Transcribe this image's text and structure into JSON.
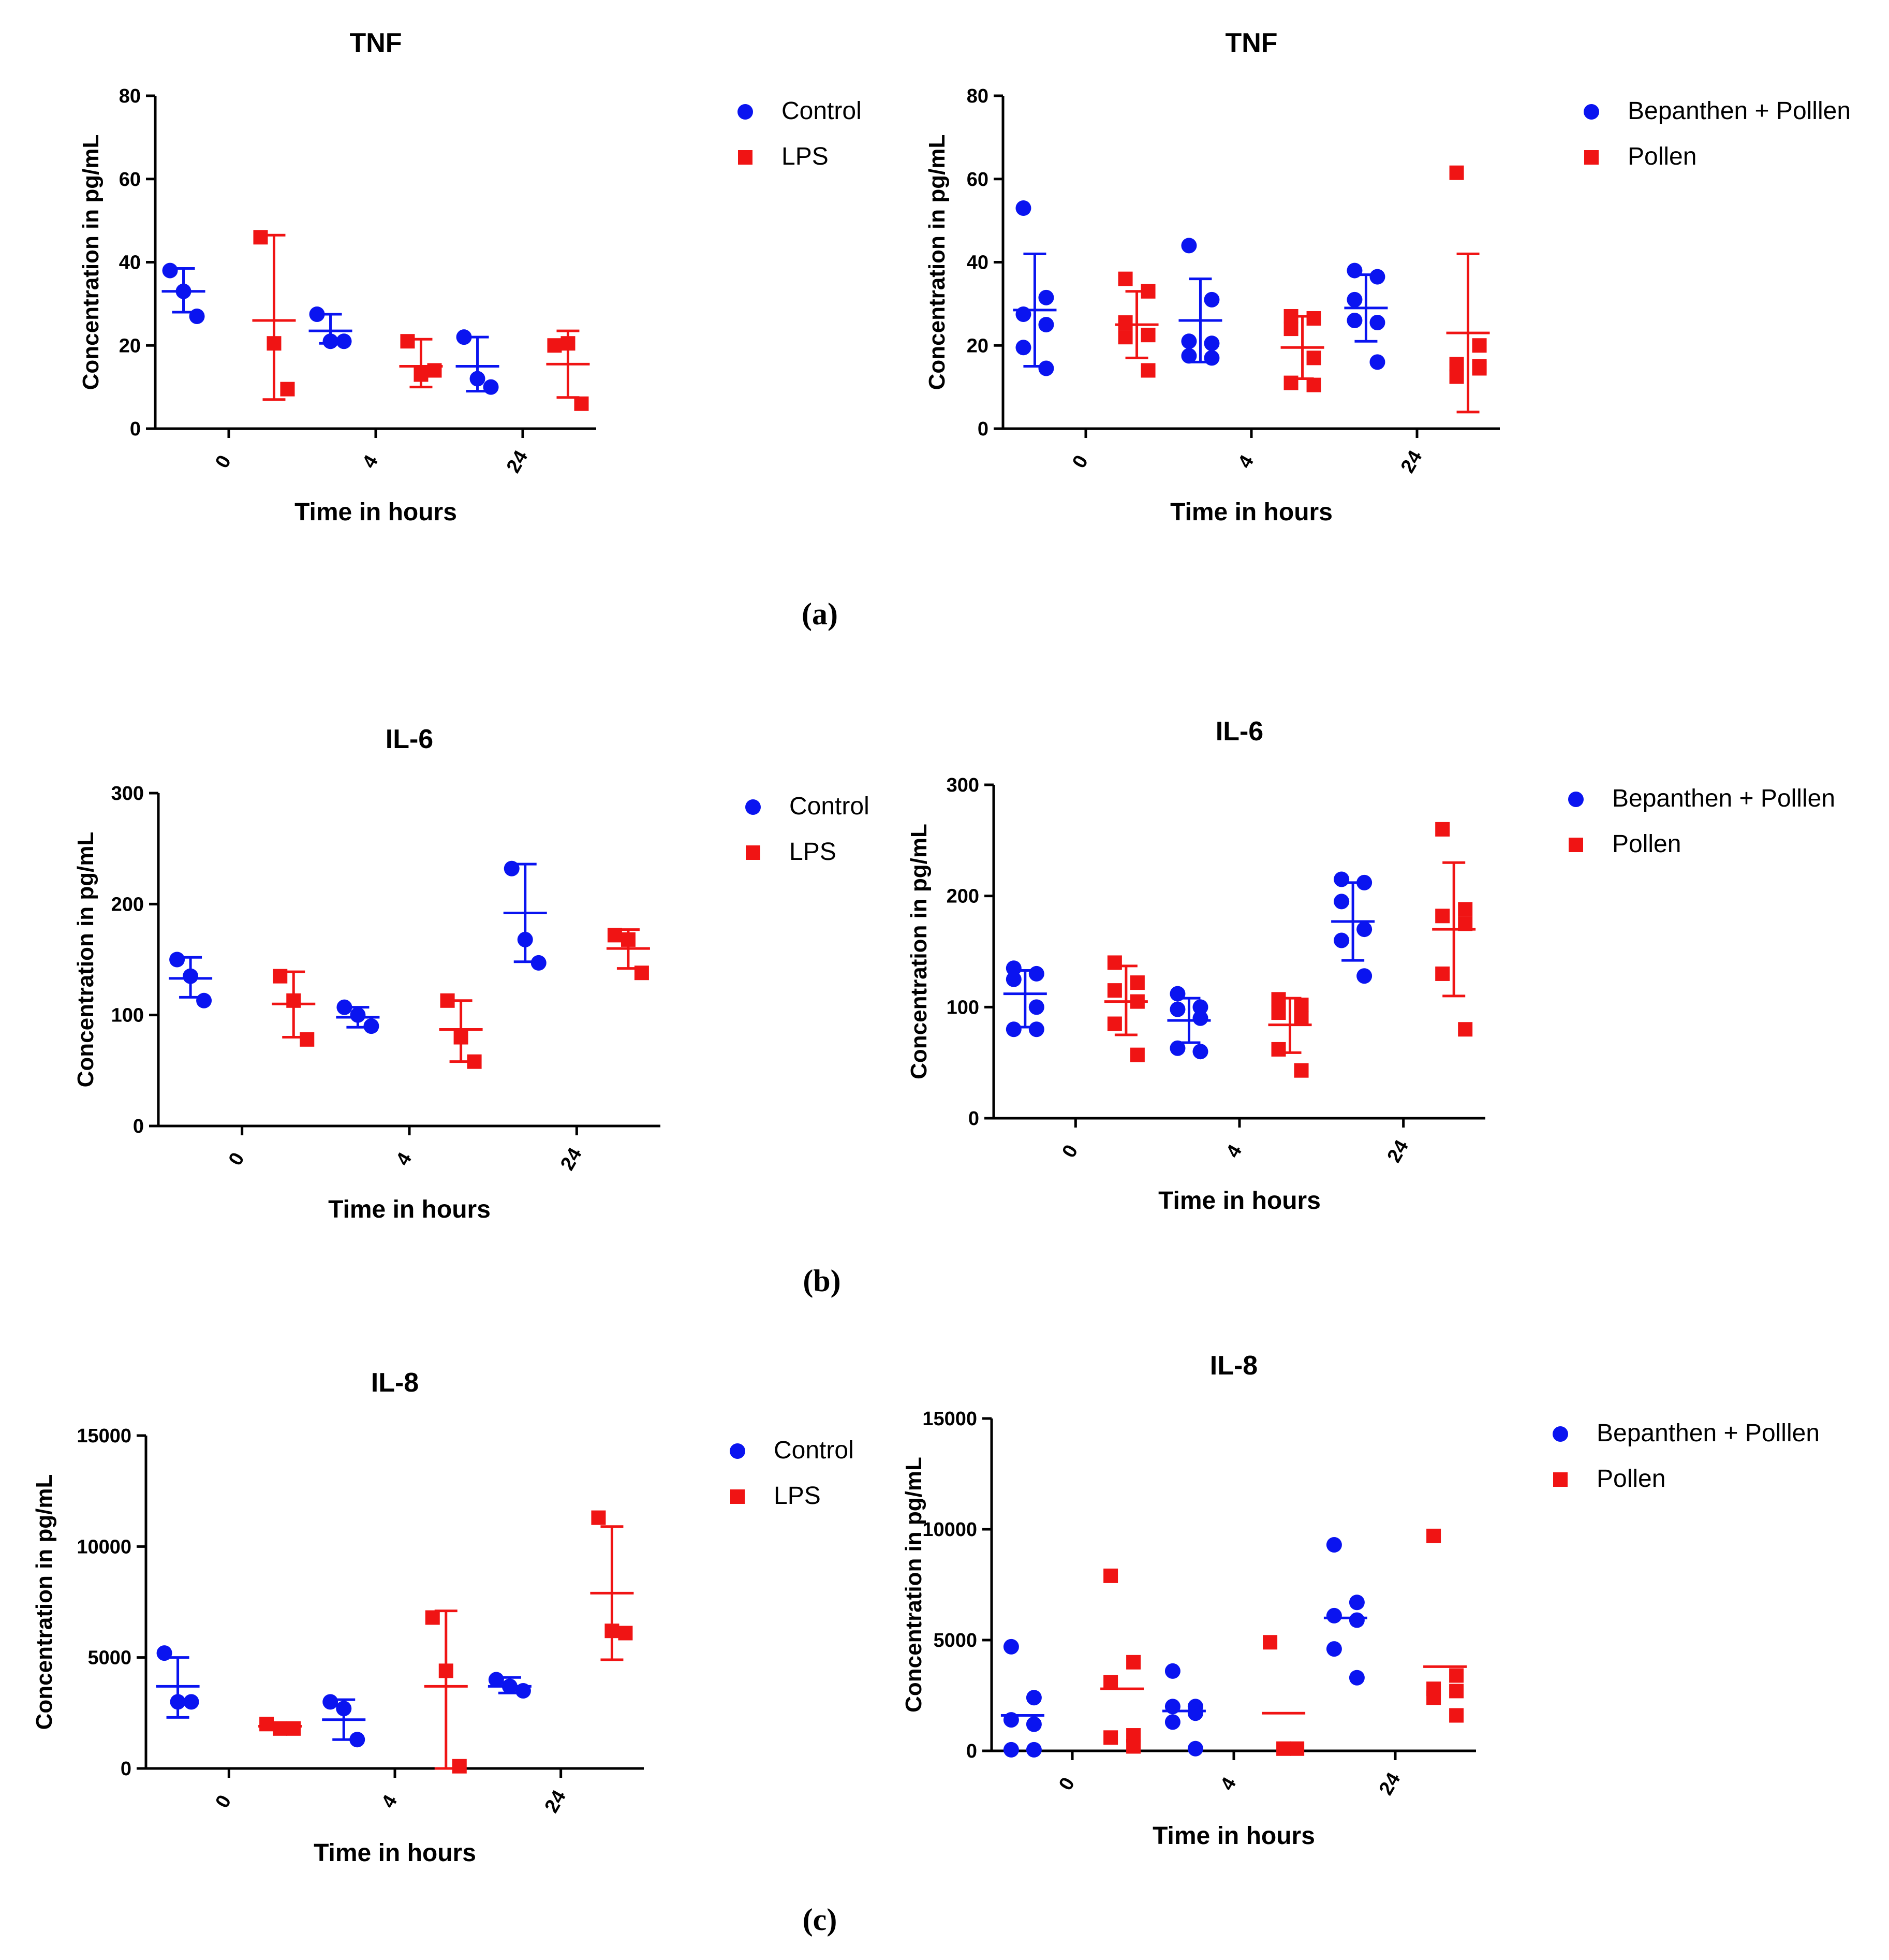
{
  "panel_labels": [
    "(a)",
    "(b)",
    "(c)"
  ],
  "colors": {
    "blue": "#0a14f0",
    "red": "#f01414",
    "axis": "#000000"
  },
  "chart_data": [
    {
      "id": "a-left",
      "type": "scatter",
      "title": "TNF",
      "xlabel": "Time in hours",
      "ylabel": "Concentration in pg/mL",
      "categories": [
        "0",
        "4",
        "24"
      ],
      "ylim": [
        0,
        80
      ],
      "yticks": [
        0,
        20,
        40,
        60,
        80
      ],
      "series": [
        {
          "name": "Control",
          "color": "#0a14f0",
          "marker": "circle",
          "points": [
            [
              38,
              33,
              27
            ],
            [
              27.5,
              21,
              21
            ],
            [
              22,
              12,
              10
            ]
          ],
          "mean": [
            33,
            23.5,
            15
          ],
          "err": [
            [
              28,
              38.5
            ],
            [
              20.5,
              27.5
            ],
            [
              9,
              22
            ]
          ]
        },
        {
          "name": "LPS",
          "color": "#f01414",
          "marker": "square",
          "points": [
            [
              46,
              20.5,
              9.5
            ],
            [
              21,
              13,
              14
            ],
            [
              20,
              20.5,
              6
            ]
          ],
          "mean": [
            26,
            15,
            15.5
          ],
          "err": [
            [
              7,
              46.5
            ],
            [
              10,
              21.5
            ],
            [
              7.5,
              23.5
            ]
          ]
        }
      ]
    },
    {
      "id": "a-right",
      "type": "scatter",
      "title": "TNF",
      "xlabel": "Time in hours",
      "ylabel": "Concentration in pg/mL",
      "categories": [
        "0",
        "4",
        "24"
      ],
      "ylim": [
        0,
        80
      ],
      "yticks": [
        0,
        20,
        40,
        60,
        80
      ],
      "series": [
        {
          "name": "Bepanthen + Polllen",
          "color": "#0a14f0",
          "marker": "circle",
          "points": [
            [
              53,
              31.5,
              27.5,
              25,
              19.5,
              14.5
            ],
            [
              44,
              31,
              21,
              20.5,
              17.5,
              17
            ],
            [
              38,
              36.5,
              31,
              25.5,
              26,
              16
            ]
          ],
          "mean": [
            28.5,
            26,
            29
          ],
          "err": [
            [
              15,
              42
            ],
            [
              16,
              36
            ],
            [
              21,
              37
            ]
          ]
        },
        {
          "name": "Pollen",
          "color": "#f01414",
          "marker": "square",
          "points": [
            [
              36,
              33,
              25.5,
              22.5,
              22,
              14
            ],
            [
              27,
              26.5,
              24,
              17,
              11,
              10.5
            ],
            [
              61.5,
              20,
              15.5,
              14.5,
              12.5,
              15
            ]
          ],
          "mean": [
            25,
            19.5,
            23
          ],
          "err": [
            [
              17,
              33
            ],
            [
              12,
              27
            ],
            [
              4,
              42
            ]
          ]
        }
      ]
    },
    {
      "id": "b-left",
      "type": "scatter",
      "title": "IL-6",
      "xlabel": "Time in hours",
      "ylabel": "Concentration in pg/mL",
      "categories": [
        "0",
        "4",
        "24"
      ],
      "ylim": [
        0,
        300
      ],
      "yticks": [
        0,
        100,
        200,
        300
      ],
      "series": [
        {
          "name": "Control",
          "color": "#0a14f0",
          "marker": "circle",
          "points": [
            [
              150,
              135,
              113
            ],
            [
              107,
              100,
              90
            ],
            [
              232,
              168,
              147
            ]
          ],
          "mean": [
            133,
            98,
            192
          ],
          "err": [
            [
              116,
              152
            ],
            [
              89,
              107
            ],
            [
              148,
              236
            ]
          ]
        },
        {
          "name": "LPS",
          "color": "#f01414",
          "marker": "square",
          "points": [
            [
              135,
              113,
              78
            ],
            [
              113,
              80,
              58
            ],
            [
              172,
              168,
              138
            ]
          ],
          "mean": [
            110,
            87,
            160
          ],
          "err": [
            [
              80,
              139
            ],
            [
              58,
              113
            ],
            [
              142,
              177
            ]
          ]
        }
      ]
    },
    {
      "id": "b-right",
      "type": "scatter",
      "title": "IL-6",
      "xlabel": "Time in hours",
      "ylabel": "Concentration in pg/mL",
      "categories": [
        "0",
        "4",
        "24"
      ],
      "ylim": [
        0,
        300
      ],
      "yticks": [
        0,
        100,
        200,
        300
      ],
      "series": [
        {
          "name": "Bepanthen + Polllen",
          "color": "#0a14f0",
          "marker": "circle",
          "points": [
            [
              135,
              130,
              125,
              100,
              80,
              80
            ],
            [
              112,
              100,
              98,
              90,
              63,
              60
            ],
            [
              215,
              212,
              195,
              170,
              160,
              128
            ]
          ],
          "mean": [
            112,
            88,
            177
          ],
          "err": [
            [
              82,
              133
            ],
            [
              68,
              108
            ],
            [
              142,
              212
            ]
          ]
        },
        {
          "name": "Pollen",
          "color": "#f01414",
          "marker": "square",
          "points": [
            [
              140,
              122,
              115,
              105,
              85,
              57
            ],
            [
              107,
              102,
              95,
              90,
              62,
              43
            ],
            [
              260,
              188,
              182,
              175,
              130,
              80
            ]
          ],
          "mean": [
            105,
            84,
            170
          ],
          "err": [
            [
              75,
              137
            ],
            [
              59,
              108
            ],
            [
              110,
              230
            ]
          ]
        }
      ]
    },
    {
      "id": "c-left",
      "type": "scatter",
      "title": "IL-8",
      "xlabel": "Time in hours",
      "ylabel": "Concentration in pg/mL",
      "categories": [
        "0",
        "4",
        "24"
      ],
      "ylim": [
        0,
        15000
      ],
      "yticks": [
        0,
        5000,
        10000,
        15000
      ],
      "series": [
        {
          "name": "Control",
          "color": "#0a14f0",
          "marker": "circle",
          "points": [
            [
              5200,
              3000,
              3000
            ],
            [
              3000,
              2700,
              1300
            ],
            [
              4000,
              3700,
              3500
            ]
          ],
          "mean": [
            3700,
            2200,
            3700
          ],
          "err": [
            [
              2300,
              5000
            ],
            [
              1300,
              3100
            ],
            [
              3400,
              4100
            ]
          ]
        },
        {
          "name": "LPS",
          "color": "#f01414",
          "marker": "square",
          "points": [
            [
              2000,
              1800,
              1800
            ],
            [
              6800,
              4400,
              100
            ],
            [
              11300,
              6200,
              6100
            ]
          ],
          "mean": [
            1900,
            3700,
            7900
          ],
          "err": [
            [
              1800,
              2000
            ],
            [
              0,
              7100
            ],
            [
              4900,
              10900
            ]
          ]
        }
      ]
    },
    {
      "id": "c-right",
      "type": "scatter",
      "title": "IL-8",
      "xlabel": "Time in hours",
      "ylabel": "Concentration in pg/mL",
      "categories": [
        "0",
        "4",
        "24"
      ],
      "ylim": [
        0,
        15000
      ],
      "yticks": [
        0,
        5000,
        10000,
        15000
      ],
      "series": [
        {
          "name": "Bepanthen + Polllen",
          "color": "#0a14f0",
          "marker": "circle",
          "points": [
            [
              4700,
              2400,
              1400,
              1200,
              50,
              50
            ],
            [
              3600,
              2000,
              2000,
              1700,
              1300,
              100
            ],
            [
              9300,
              6700,
              6100,
              5900,
              4600,
              3300
            ]
          ],
          "mean": [
            1600,
            1800,
            6000
          ]
        },
        {
          "name": "Pollen",
          "color": "#f01414",
          "marker": "square",
          "points": [
            [
              7900,
              4000,
              3100,
              700,
              600,
              200
            ],
            [
              4900,
              100,
              100
            ],
            [
              9700,
              3400,
              2800,
              2700,
              2400,
              1600
            ]
          ],
          "mean": [
            2800,
            1700,
            3800
          ]
        }
      ]
    }
  ]
}
